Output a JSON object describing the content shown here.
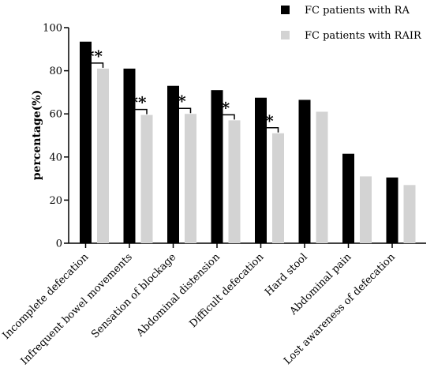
{
  "chart_data": {
    "type": "bar",
    "title": "",
    "xlabel": "",
    "ylabel": "percentage(%)",
    "ylim": [
      0,
      100
    ],
    "yticks": [
      0,
      20,
      40,
      60,
      80,
      100
    ],
    "categories": [
      "Incomplete defecation",
      "Infrequent bowel movements",
      "Sensation of blockage",
      "Abdominal distension",
      "Difficult defecation",
      "Hard stool",
      "Abdominal pain",
      "Lost awareness of defecation"
    ],
    "series": [
      {
        "name": "FC patients with RA",
        "color": "#000000",
        "values": [
          93.5,
          81,
          73,
          71,
          67.5,
          66.5,
          41.5,
          30.5
        ]
      },
      {
        "name": "FC patients with RAIR",
        "color": "#d3d3d3",
        "values": [
          81,
          59.5,
          60,
          57,
          51,
          61,
          31,
          27
        ]
      }
    ],
    "significance": [
      "**",
      "**",
      "*",
      "*",
      "*",
      "",
      "",
      ""
    ],
    "legend_position": "top-right",
    "grid": false
  }
}
